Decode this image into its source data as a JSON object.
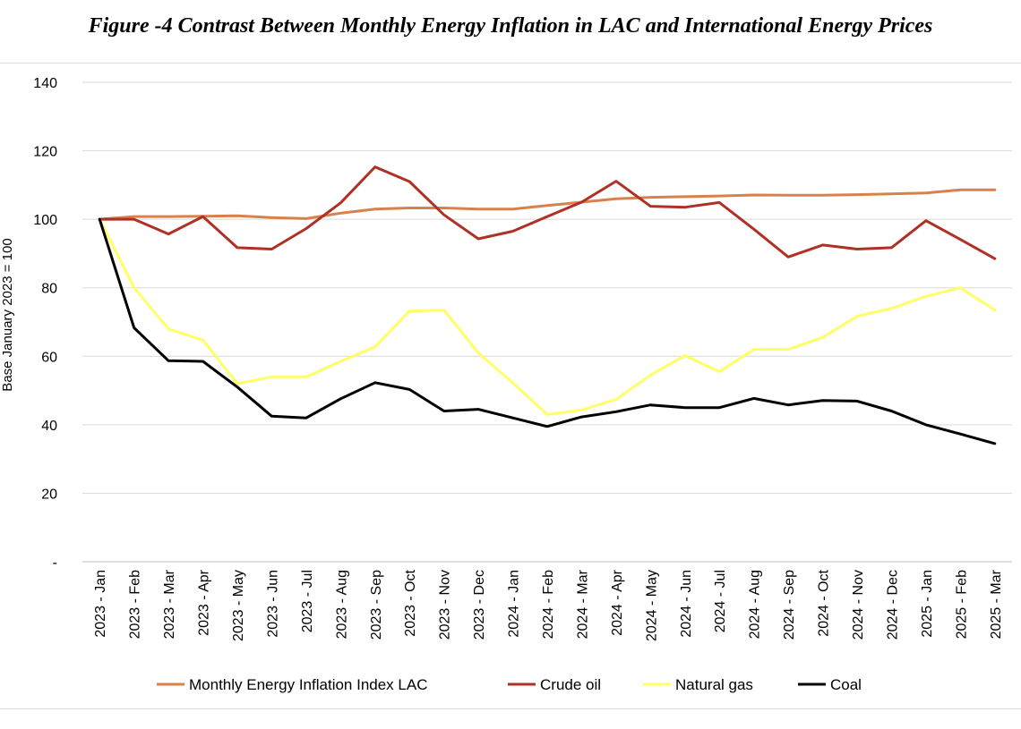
{
  "figure": {
    "title": "Figure -4 Contrast Between Monthly Energy Inflation in LAC and International Energy Prices"
  },
  "chart_data": {
    "type": "line",
    "title": "Figure -4 Contrast Between Monthly Energy Inflation in LAC and International Energy Prices",
    "xlabel": "",
    "ylabel": "Base January 2023 = 100",
    "ylim": [
      0,
      140
    ],
    "y_ticks": [
      {
        "value": 0,
        "label": "-"
      },
      {
        "value": 20,
        "label": "20"
      },
      {
        "value": 40,
        "label": "40"
      },
      {
        "value": 60,
        "label": "60"
      },
      {
        "value": 80,
        "label": "80"
      },
      {
        "value": 100,
        "label": "100"
      },
      {
        "value": 120,
        "label": "120"
      },
      {
        "value": 140,
        "label": "140"
      }
    ],
    "grid": true,
    "legend_position": "bottom",
    "categories": [
      "2023 - Jan",
      "2023 - Feb",
      "2023 - Mar",
      "2023 - Apr",
      "2023 - May",
      "2023 - Jun",
      "2023 - Jul",
      "2023 - Aug",
      "2023 - Sep",
      "2023 - Oct",
      "2023 - Nov",
      "2023 - Dec",
      "2024 - Jan",
      "2024 - Feb",
      "2024 - Mar",
      "2024 - Apr",
      "2024 - May",
      "2024 - Jun",
      "2024 - Jul",
      "2024 - Aug",
      "2024 - Sep",
      "2024 - Oct",
      "2024 - Nov",
      "2024 - Dec",
      "2025 - Jan",
      "2025 - Feb",
      "2025 - Mar"
    ],
    "series": [
      {
        "name": "Monthly Energy Inflation Index LAC",
        "color": "#d9814a",
        "values": [
          100,
          100.8,
          100.8,
          100.9,
          101,
          100.5,
          100.2,
          101.8,
          103,
          103.3,
          103.3,
          103,
          103,
          104,
          105,
          106,
          106.4,
          106.6,
          106.8,
          107.1,
          107,
          107,
          107.2,
          107.4,
          107.7,
          108.6,
          108.6
        ]
      },
      {
        "name": "Crude oil",
        "color": "#b03026",
        "values": [
          100,
          100,
          95.7,
          100.8,
          91.7,
          91.3,
          97.3,
          104.8,
          115.3,
          111,
          101.3,
          94.3,
          96.5,
          100.8,
          105,
          111.1,
          103.8,
          103.5,
          104.9,
          97.1,
          89,
          92.5,
          91.3,
          91.7,
          99.6,
          94.1,
          88.5
        ]
      },
      {
        "name": "Natural gas",
        "color": "#ffff66",
        "values": [
          100,
          80,
          68,
          64.7,
          52,
          54,
          54,
          58.5,
          62.8,
          73.2,
          73.5,
          61,
          52.2,
          43,
          44.3,
          47.4,
          54.5,
          60.2,
          55.5,
          62,
          62,
          65.5,
          71.7,
          74,
          77.5,
          80,
          73.5
        ]
      },
      {
        "name": "Coal",
        "color": "#000000",
        "values": [
          100,
          68.3,
          58.7,
          58.5,
          51,
          42.5,
          42,
          47.6,
          52.3,
          50.3,
          44,
          44.5,
          42,
          39.5,
          42.3,
          43.8,
          45.8,
          45,
          45,
          47.7,
          45.8,
          47.1,
          46.9,
          44,
          40,
          37.3,
          34.5
        ]
      }
    ]
  }
}
